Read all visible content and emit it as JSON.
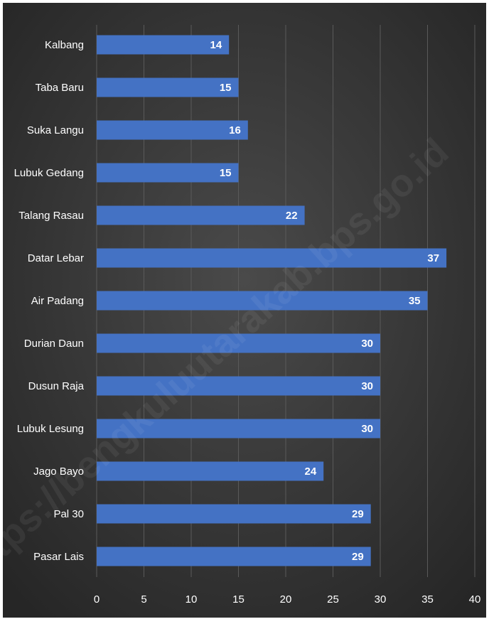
{
  "chart_data": {
    "type": "bar",
    "orientation": "horizontal",
    "categories": [
      "Kalbang",
      "Taba Baru",
      "Suka Langu",
      "Lubuk Gedang",
      "Talang Rasau",
      "Datar Lebar",
      "Air Padang",
      "Durian Daun",
      "Dusun Raja",
      "Lubuk Lesung",
      "Jago Bayo",
      "Pal 30",
      "Pasar Lais"
    ],
    "values": [
      14,
      15,
      16,
      15,
      22,
      37,
      35,
      30,
      30,
      30,
      24,
      29,
      29
    ],
    "xticks": [
      "0",
      "5",
      "10",
      "15",
      "20",
      "25",
      "30",
      "35",
      "40"
    ],
    "xlim": [
      0,
      40
    ],
    "grid": true,
    "data_labels": true,
    "bar_color": "#4472C4",
    "background_color": "#3a3a3a",
    "title": "",
    "xlabel": "",
    "ylabel": ""
  },
  "watermark": "https://bengkuluutarakab.bps.go.id"
}
